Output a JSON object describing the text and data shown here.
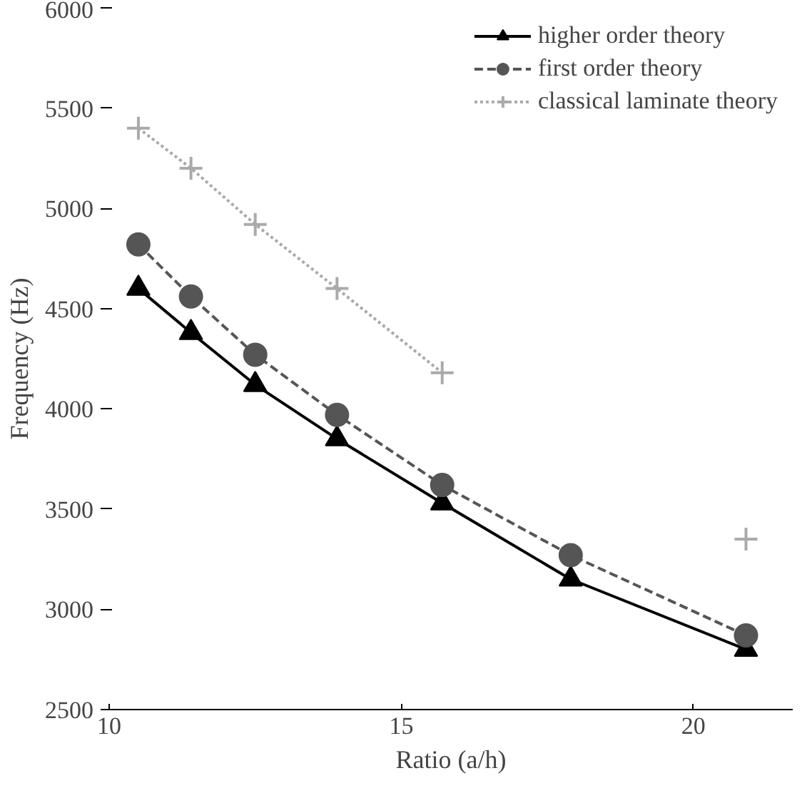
{
  "chart_data": {
    "type": "line",
    "xlabel": "Ratio (a/h)",
    "ylabel": "Frequency (Hz)",
    "x": [
      10.5,
      11.4,
      12.5,
      13.9,
      15.7,
      17.9,
      20.9
    ],
    "xlim": [
      10,
      21.7
    ],
    "xticks": [
      10,
      15,
      20
    ],
    "ylim": [
      2500,
      6000
    ],
    "yticks": [
      2500,
      3000,
      3500,
      4000,
      4500,
      5000,
      5500,
      6000
    ],
    "grid": false,
    "legend": "top right",
    "series": [
      {
        "name": "higher order theory",
        "color": "#000000",
        "marker": "triangle",
        "line_style": "solid",
        "values": [
          4600,
          4380,
          4120,
          3850,
          3530,
          3150,
          2800
        ]
      },
      {
        "name": "first order theory",
        "color": "#555555",
        "marker": "circle",
        "line_style": "dashed",
        "values": [
          4820,
          4560,
          4270,
          3970,
          3620,
          3270,
          2870
        ]
      },
      {
        "name": "classical laminate theory",
        "color": "#aaaaaa",
        "marker": "cross",
        "line_style": "dotted",
        "values": [
          5400,
          5200,
          4920,
          4600,
          4180,
          null,
          3350
        ]
      }
    ]
  }
}
